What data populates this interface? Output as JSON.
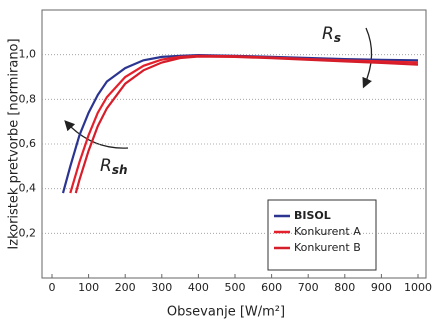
{
  "chart_data": {
    "type": "line",
    "x_label": "Obsevanje [W/m²]",
    "y_label": "Izkoristek pretvorbe [normirano]",
    "xlim": [
      0,
      1000
    ],
    "xticks": [
      0,
      100,
      200,
      300,
      400,
      500,
      600,
      700,
      800,
      900,
      1000
    ],
    "ylim": [
      0,
      1.2
    ],
    "yticks": [
      {
        "value": 0.2,
        "label": "0,2"
      },
      {
        "value": 0.4,
        "label": "0,4"
      },
      {
        "value": 0.6,
        "label": "0,6"
      },
      {
        "value": 0.8,
        "label": "0,8"
      },
      {
        "value": 1.0,
        "label": "1,0"
      }
    ],
    "grid": true,
    "series": [
      {
        "name": "BISOL",
        "color": "#2b3591",
        "x": [
          30,
          50,
          75,
          100,
          125,
          150,
          200,
          250,
          300,
          350,
          400,
          500,
          600,
          700,
          800,
          900,
          1000
        ],
        "values": [
          0.38,
          0.5,
          0.64,
          0.74,
          0.82,
          0.88,
          0.94,
          0.975,
          0.99,
          0.995,
          0.998,
          0.995,
          0.99,
          0.985,
          0.98,
          0.977,
          0.975
        ]
      },
      {
        "name": "Konkurent A",
        "color": "#e3202b",
        "x": [
          50,
          75,
          100,
          125,
          150,
          200,
          250,
          300,
          350,
          400,
          500,
          600,
          700,
          800,
          900,
          1000
        ],
        "values": [
          0.38,
          0.52,
          0.64,
          0.74,
          0.81,
          0.9,
          0.95,
          0.978,
          0.99,
          0.995,
          0.993,
          0.987,
          0.98,
          0.975,
          0.97,
          0.965
        ]
      },
      {
        "name": "Konkurent B",
        "color": "#d61d2a",
        "x": [
          65,
          75,
          100,
          125,
          150,
          200,
          250,
          300,
          350,
          400,
          500,
          600,
          700,
          800,
          900,
          1000
        ],
        "values": [
          0.38,
          0.44,
          0.57,
          0.68,
          0.76,
          0.87,
          0.93,
          0.965,
          0.985,
          0.992,
          0.99,
          0.984,
          0.977,
          0.97,
          0.963,
          0.955
        ]
      }
    ],
    "legend_position": "lower right",
    "annotations": [
      {
        "text": "R",
        "sub": "s"
      },
      {
        "text": "R",
        "sub": "sh"
      }
    ]
  }
}
